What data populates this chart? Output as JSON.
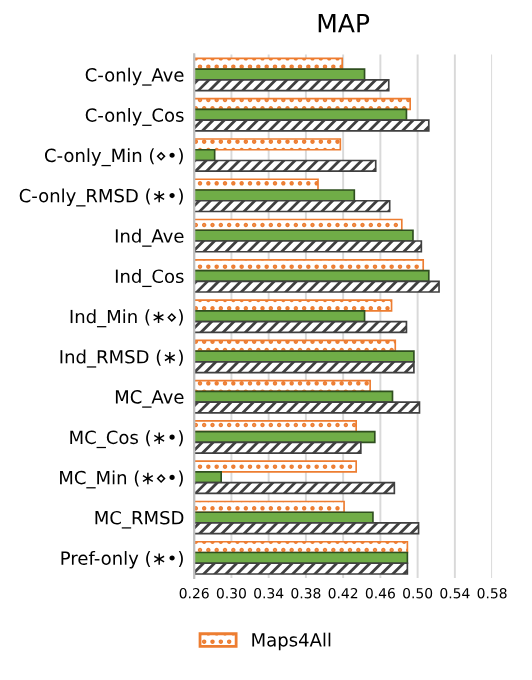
{
  "chart_data": {
    "type": "bar",
    "orientation": "horizontal",
    "title": "MAP",
    "categories": [
      "C-only_Ave",
      "C-only_Cos",
      "C-only_Min (⋄•)",
      "C-only_RMSD (∗•)",
      "Ind_Ave",
      "Ind_Cos",
      "Ind_Min (∗⋄)",
      "Ind_RMSD (∗)",
      "MC_Ave",
      "MC_Cos (∗•)",
      "MC_Min (∗⋄•)",
      "MC_RMSD",
      "Pref-only (∗•)"
    ],
    "series": [
      {
        "name": "Maps4All",
        "color": "#ed7d31",
        "values": [
          0.419,
          0.492,
          0.417,
          0.393,
          0.483,
          0.506,
          0.472,
          0.476,
          0.449,
          0.434,
          0.434,
          0.421,
          0.489
        ]
      },
      {
        "color": "#70ad47",
        "values": [
          0.443,
          0.488,
          0.282,
          0.432,
          0.495,
          0.512,
          0.443,
          0.496,
          0.473,
          0.454,
          0.289,
          0.452,
          0.489
        ]
      },
      {
        "color": "#404040",
        "values": [
          0.469,
          0.512,
          0.455,
          0.47,
          0.504,
          0.523,
          0.488,
          0.496,
          0.502,
          0.439,
          0.475,
          0.501,
          0.489
        ]
      }
    ],
    "xlim": [
      0.26,
      0.58
    ],
    "xticks": [
      {
        "value": 0.26,
        "label": "0.26"
      },
      {
        "value": 0.3,
        "label": "0.30"
      },
      {
        "value": 0.34,
        "label": "0.34"
      },
      {
        "value": 0.38,
        "label": "0.38"
      },
      {
        "value": 0.42,
        "label": "0.42"
      },
      {
        "value": 0.46,
        "label": "0.46"
      },
      {
        "value": 0.5,
        "label": "0.50"
      },
      {
        "value": 0.54,
        "label": "0.54"
      },
      {
        "value": 0.58,
        "label": "0.58"
      }
    ],
    "grid": "x",
    "legend": "bottom"
  }
}
